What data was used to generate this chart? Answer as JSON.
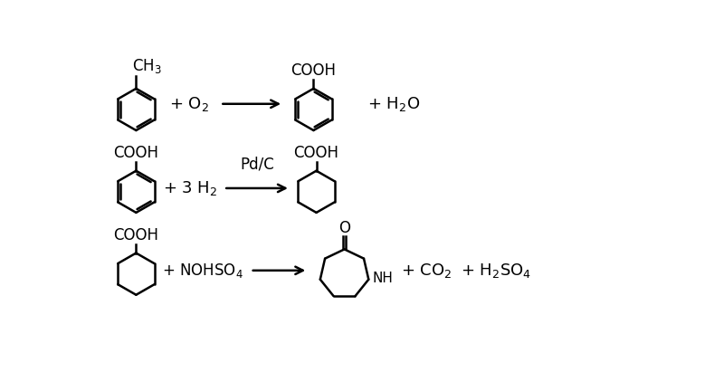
{
  "bg_color": "#ffffff",
  "line_color": "#000000",
  "line_width": 1.8,
  "font_size": 12,
  "figsize": [
    8.0,
    4.11
  ],
  "dpi": 100,
  "xlim": [
    0,
    8.0
  ],
  "ylim": [
    0,
    4.11
  ]
}
